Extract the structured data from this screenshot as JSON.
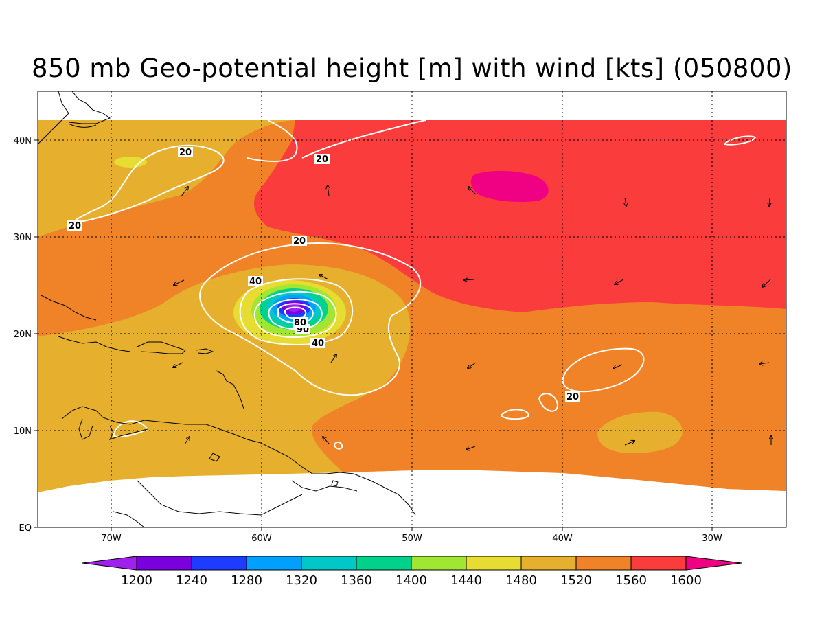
{
  "title": "850 mb Geo-potential height [m] with wind [kts] (050800)",
  "colors": {
    "c1200": "#a020f0",
    "c1240": "#7a00e0",
    "c1280": "#1e3cff",
    "c1320": "#00a0ff",
    "c1360": "#00c8c8",
    "c1400": "#00d28c",
    "c1440": "#a0e632",
    "c1480": "#e6dc32",
    "c1520": "#e6af2d",
    "c1560": "#f08228",
    "c1600": "#fa3c3c",
    "c1640": "#f00082"
  },
  "lon_labels": [
    "70W",
    "60W",
    "50W",
    "40W",
    "30W"
  ],
  "lat_labels": [
    "40N",
    "30N",
    "20N",
    "10N",
    "EQ"
  ],
  "contour_labels": [
    "20",
    "20",
    "20",
    "20",
    "20",
    "40",
    "40",
    "80",
    "90"
  ],
  "colorbar": {
    "labels": [
      "1200",
      "1240",
      "1280",
      "1320",
      "1360",
      "1400",
      "1440",
      "1480",
      "1520",
      "1560",
      "1600"
    ]
  }
}
